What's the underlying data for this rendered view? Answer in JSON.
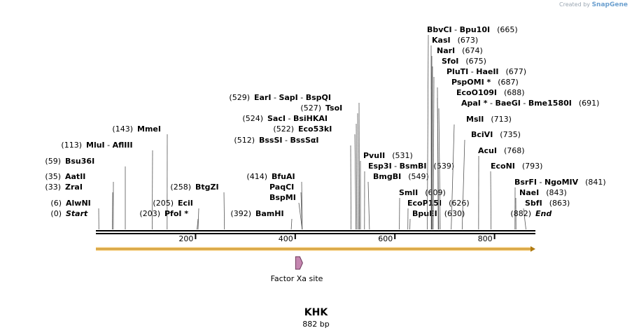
{
  "watermark": {
    "prefix": "Created by",
    "brand": "SnapGene"
  },
  "sequence": {
    "name": "KHK",
    "length_label": "882 bp",
    "length": 882
  },
  "axis_ticks": [
    "200",
    "400",
    "600",
    "800"
  ],
  "feature": {
    "name": "Factor Xa site",
    "start": 405,
    "end": 416,
    "color": "#c486b0"
  },
  "track_color": "#f2c66e",
  "sites": [
    {
      "pos": "(0)",
      "names": [
        "Start"
      ],
      "marks": [
        ""
      ],
      "italic": true,
      "bp": 0
    },
    {
      "pos": "(6)",
      "names": [
        "AlwNI"
      ],
      "marks": [
        ""
      ],
      "bp": 6
    },
    {
      "pos": "(33)",
      "names": [
        "ZraI"
      ],
      "marks": [
        ""
      ],
      "bp": 33
    },
    {
      "pos": "(35)",
      "names": [
        "AatII"
      ],
      "marks": [
        ""
      ],
      "bp": 35
    },
    {
      "pos": "(59)",
      "names": [
        "Bsu36I"
      ],
      "marks": [
        ""
      ],
      "bp": 59
    },
    {
      "pos": "(113)",
      "names": [
        "MluI",
        "AflIII"
      ],
      "marks": [
        "",
        ""
      ],
      "bp": 113
    },
    {
      "pos": "(143)",
      "names": [
        "MmeI"
      ],
      "marks": [
        ""
      ],
      "bp": 143
    },
    {
      "pos": "(203)",
      "names": [
        "PfoI"
      ],
      "marks": [
        " *"
      ],
      "bp": 203
    },
    {
      "pos": "(205)",
      "names": [
        "EciI"
      ],
      "marks": [
        ""
      ],
      "bp": 205
    },
    {
      "pos": "(258)",
      "names": [
        "BtgZI"
      ],
      "marks": [
        ""
      ],
      "bp": 258
    },
    {
      "pos": "(392)",
      "names": [
        "BamHI"
      ],
      "marks": [
        ""
      ],
      "bp": 392
    },
    {
      "pos": "",
      "names": [
        "BspMI"
      ],
      "marks": [
        ""
      ],
      "bp": 414
    },
    {
      "pos": "",
      "names": [
        "PaqCI"
      ],
      "marks": [
        ""
      ],
      "bp": 414
    },
    {
      "pos": "(414)",
      "names": [
        "BfuAI"
      ],
      "marks": [
        ""
      ],
      "bp": 414
    },
    {
      "pos": "(512)",
      "names": [
        "BssSI",
        "BssSαI"
      ],
      "marks": [
        "",
        ""
      ],
      "bp": 512
    },
    {
      "pos": "(522)",
      "names": [
        "Eco53kI"
      ],
      "marks": [
        ""
      ],
      "bp": 522
    },
    {
      "pos": "(524)",
      "names": [
        "SacI",
        "BsiHKAI"
      ],
      "marks": [
        "",
        ""
      ],
      "bp": 524
    },
    {
      "pos": "(527)",
      "names": [
        "TsoI"
      ],
      "marks": [
        ""
      ],
      "bp": 527
    },
    {
      "pos": "(529)",
      "names": [
        "EarI",
        "SapI",
        "BspQI"
      ],
      "marks": [
        "",
        "",
        ""
      ],
      "bp": 529
    },
    {
      "pos": "(531)",
      "names": [
        "PvuII"
      ],
      "marks": [
        ""
      ],
      "bp": 531
    },
    {
      "pos": "(539)",
      "names": [
        "Esp3I",
        "BsmBI"
      ],
      "marks": [
        "",
        ""
      ],
      "bp": 539
    },
    {
      "pos": "(549)",
      "names": [
        "BmgBI"
      ],
      "marks": [
        ""
      ],
      "bp": 549
    },
    {
      "pos": "(609)",
      "names": [
        "SmlI"
      ],
      "marks": [
        ""
      ],
      "bp": 609
    },
    {
      "pos": "(626)",
      "names": [
        "EcoP15I"
      ],
      "marks": [
        ""
      ],
      "bp": 626
    },
    {
      "pos": "(630)",
      "names": [
        "BpuEI"
      ],
      "marks": [
        ""
      ],
      "bp": 630
    },
    {
      "pos": "(665)",
      "names": [
        "BbvCI",
        "Bpu10I"
      ],
      "marks": [
        "",
        ""
      ],
      "bp": 665
    },
    {
      "pos": "(673)",
      "names": [
        "KasI"
      ],
      "marks": [
        ""
      ],
      "bp": 673
    },
    {
      "pos": "(674)",
      "names": [
        "NarI"
      ],
      "marks": [
        ""
      ],
      "bp": 674
    },
    {
      "pos": "(675)",
      "names": [
        "SfoI"
      ],
      "marks": [
        ""
      ],
      "bp": 675
    },
    {
      "pos": "(677)",
      "names": [
        "PluTI",
        "HaeII"
      ],
      "marks": [
        "",
        ""
      ],
      "bp": 677
    },
    {
      "pos": "(687)",
      "names": [
        "PspOMI"
      ],
      "marks": [
        " *"
      ],
      "bp": 687
    },
    {
      "pos": "(688)",
      "names": [
        "EcoO109I"
      ],
      "marks": [
        ""
      ],
      "bp": 688
    },
    {
      "pos": "(691)",
      "names": [
        "ApaI",
        "BaeGI",
        "Bme1580I"
      ],
      "marks": [
        " *",
        "",
        ""
      ],
      "bp": 691
    },
    {
      "pos": "(713)",
      "names": [
        "MslI"
      ],
      "marks": [
        ""
      ],
      "bp": 713
    },
    {
      "pos": "(735)",
      "names": [
        "BciVI"
      ],
      "marks": [
        ""
      ],
      "bp": 735
    },
    {
      "pos": "(768)",
      "names": [
        "AcuI"
      ],
      "marks": [
        ""
      ],
      "bp": 768
    },
    {
      "pos": "(793)",
      "names": [
        "EcoNI"
      ],
      "marks": [
        ""
      ],
      "bp": 793
    },
    {
      "pos": "(841)",
      "names": [
        "BsrFI",
        "NgoMIV"
      ],
      "marks": [
        "",
        ""
      ],
      "bp": 841
    },
    {
      "pos": "(843)",
      "names": [
        "NaeI"
      ],
      "marks": [
        ""
      ],
      "bp": 843
    },
    {
      "pos": "(863)",
      "names": [
        "SbfI"
      ],
      "marks": [
        ""
      ],
      "bp": 863
    },
    {
      "pos": "(882)",
      "names": [
        "End"
      ],
      "marks": [
        ""
      ],
      "italic": true,
      "bp": 882
    }
  ]
}
